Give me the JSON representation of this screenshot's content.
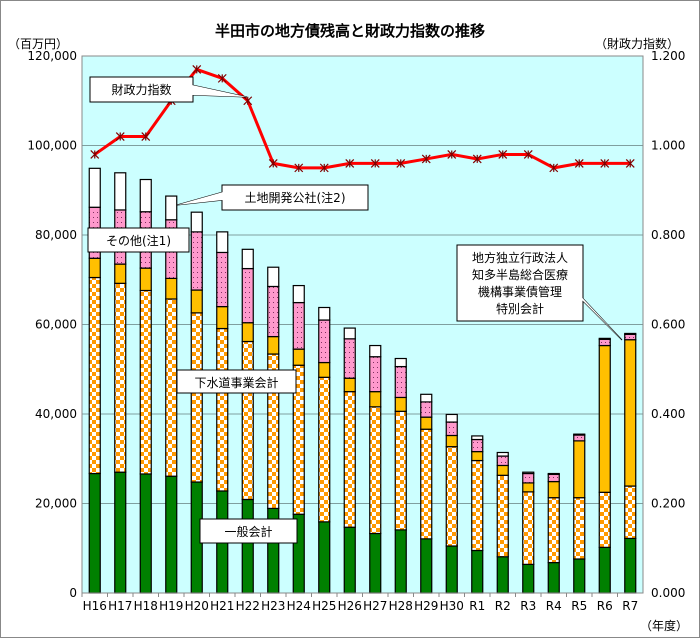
{
  "chart_data": {
    "type": "bar",
    "stacked": true,
    "title": "半田市の地方債残高と財政力指数の推移",
    "ylabel": "（百万円）",
    "y2label": "（財政力指数）",
    "xlabel": "（年度）",
    "ylim": [
      0,
      120000
    ],
    "y2lim": [
      0,
      1.2
    ],
    "yticks": [
      "0",
      "20,000",
      "40,000",
      "60,000",
      "80,000",
      "100,000",
      "120,000"
    ],
    "y2ticks": [
      "0.000",
      "0.200",
      "0.400",
      "0.600",
      "0.800",
      "1.000",
      "1.200"
    ],
    "grid": true,
    "categories": [
      "H16",
      "H17",
      "H18",
      "H19",
      "H20",
      "H21",
      "H22",
      "H23",
      "H24",
      "H25",
      "H26",
      "H27",
      "H28",
      "H29",
      "H30",
      "R1",
      "R2",
      "R3",
      "R4",
      "R5",
      "R6",
      "R7"
    ],
    "series": [
      {
        "name": "一般会計",
        "color": "#008000",
        "pattern": "solid",
        "values": [
          26700,
          27000,
          26600,
          26100,
          24800,
          22800,
          20900,
          18900,
          17600,
          15900,
          14700,
          13300,
          14100,
          12100,
          10500,
          9500,
          8100,
          6400,
          6800,
          7600,
          10200,
          12200
        ]
      },
      {
        "name": "下水道事業会計",
        "color": "#FF9900",
        "pattern": "checker",
        "values": [
          43800,
          42200,
          41000,
          39600,
          37800,
          36300,
          35300,
          34500,
          33300,
          32300,
          30300,
          28300,
          26500,
          24500,
          22200,
          20100,
          18200,
          16200,
          14500,
          13700,
          12300,
          11700
        ]
      },
      {
        "name": "地方独立行政法人知多半島総合医療機構事業債管理特別会計",
        "color": "#FFC000",
        "pattern": "solid",
        "values": [
          4300,
          4300,
          5000,
          4600,
          5100,
          4900,
          4200,
          3900,
          3600,
          3300,
          3000,
          3400,
          3100,
          2700,
          2500,
          2000,
          2200,
          2000,
          3600,
          12700,
          32800,
          32700
        ]
      },
      {
        "name": "その他（注1）",
        "color": "#FF99CC",
        "pattern": "dots",
        "values": [
          11400,
          12100,
          12600,
          13100,
          13000,
          12100,
          12100,
          11200,
          10400,
          9500,
          8800,
          7800,
          6900,
          3400,
          3000,
          2700,
          2100,
          2100,
          1600,
          1300,
          1400,
          1200
        ]
      },
      {
        "name": "土地開発公社（注2）",
        "color": "#FFFFFF",
        "pattern": "solid",
        "values": [
          8700,
          8300,
          7200,
          5300,
          4400,
          4600,
          4300,
          4300,
          3800,
          2800,
          2400,
          2500,
          1800,
          1700,
          1700,
          800,
          800,
          300,
          200,
          200,
          200,
          200
        ]
      }
    ],
    "line": {
      "name": "財政力指数",
      "color": "#FF0000",
      "axis": "right",
      "values": [
        0.98,
        1.02,
        1.02,
        1.1,
        1.17,
        1.15,
        1.1,
        0.96,
        0.95,
        0.95,
        0.96,
        0.96,
        0.96,
        0.97,
        0.98,
        0.97,
        0.98,
        0.98,
        0.95,
        0.96,
        0.96,
        0.96
      ]
    },
    "callouts": {
      "index": "財政力指数",
      "land": "土地開発公社(注2)",
      "other": "その他(注1)",
      "sewer": "下水道事業会計",
      "general": "一般会計",
      "hospital": [
        "地方独立行政法人",
        "知多半島総合医療",
        "機構事業債管理",
        "特別会計"
      ]
    },
    "colors": {
      "plot_background": "#CCFFFF",
      "gridline": "#7F9F9F"
    }
  }
}
